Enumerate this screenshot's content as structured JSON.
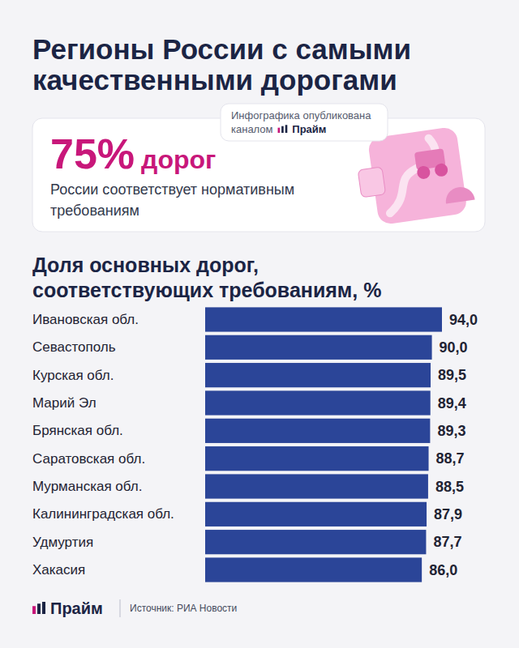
{
  "title": "Регионы России с самыми качественными дорогами",
  "badge": {
    "text": "Инфографика опубликована каналом",
    "brand": "Прайм"
  },
  "highlight": {
    "number": "75%",
    "word": "дорог",
    "text": "России соответствует нормативным требованиям"
  },
  "footer": {
    "brand": "Прайм",
    "source": "Источник: РИА Новости"
  },
  "chart_data": {
    "type": "bar",
    "orientation": "horizontal",
    "title": "Доля основных дорог, соответствующих требованиям, %",
    "categories": [
      "Ивановская обл.",
      "Севастополь",
      "Курская обл.",
      "Марий Эл",
      "Брянская обл.",
      "Саратовская обл.",
      "Мурманская обл.",
      "Калининградская обл.",
      "Удмуртия",
      "Хакасия"
    ],
    "values": [
      94.0,
      90.0,
      89.5,
      89.4,
      89.3,
      88.7,
      88.5,
      87.9,
      87.7,
      86.0
    ],
    "value_labels": [
      "94,0",
      "90,0",
      "89,5",
      "89,4",
      "89,3",
      "88,7",
      "88,5",
      "87,9",
      "87,7",
      "86,0"
    ],
    "color": "#2b4598",
    "data_labels": true,
    "tick_labels": "y"
  }
}
